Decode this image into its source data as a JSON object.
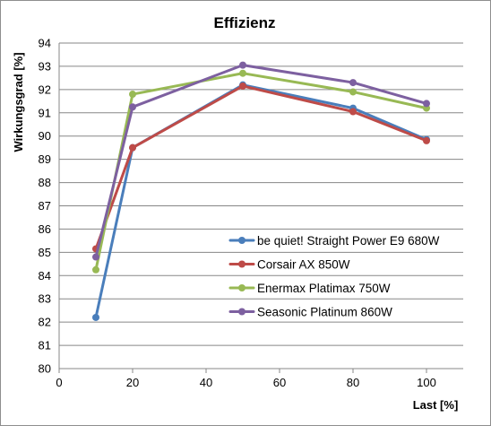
{
  "chart_data": {
    "type": "line",
    "title": "Effizienz",
    "xlabel": "Last [%]",
    "ylabel": "Wirkungsgrad [%]",
    "xlim": [
      0,
      110
    ],
    "ylim": [
      80,
      94
    ],
    "xticks": [
      0,
      20,
      40,
      60,
      80,
      100
    ],
    "yticks": [
      80,
      81,
      82,
      83,
      84,
      85,
      86,
      87,
      88,
      89,
      90,
      91,
      92,
      93,
      94
    ],
    "grid": "horizontal",
    "legend": "right",
    "series": [
      {
        "name": "be quiet! Straight Power E9 680W",
        "color": "#4a7ebb",
        "x": [
          10,
          20,
          50,
          80,
          100
        ],
        "y": [
          82.2,
          89.5,
          92.2,
          91.2,
          89.85
        ]
      },
      {
        "name": "Corsair AX 850W",
        "color": "#be4b48",
        "x": [
          10,
          20,
          50,
          80,
          100
        ],
        "y": [
          85.15,
          89.5,
          92.15,
          91.05,
          89.8
        ]
      },
      {
        "name": "Enermax Platimax 750W",
        "color": "#98b954",
        "x": [
          10,
          20,
          50,
          80,
          100
        ],
        "y": [
          84.25,
          91.8,
          92.7,
          91.9,
          91.2
        ]
      },
      {
        "name": "Seasonic Platinum 860W",
        "color": "#7d60a0",
        "x": [
          10,
          20,
          50,
          80,
          100
        ],
        "y": [
          84.8,
          91.25,
          93.05,
          92.3,
          91.4
        ]
      }
    ]
  }
}
